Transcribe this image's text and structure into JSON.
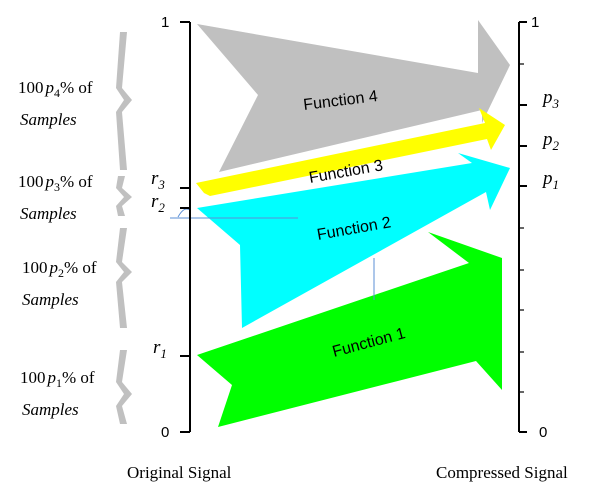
{
  "left_axis": {
    "top_label": "1",
    "bottom_label": "0",
    "caption": "Original Signal"
  },
  "right_axis": {
    "top_label": "1",
    "bottom_label": "0",
    "caption": "Compressed Signal"
  },
  "left_marks": [
    {
      "sym": "r",
      "sub": "3"
    },
    {
      "sym": "r",
      "sub": "2"
    },
    {
      "sym": "r",
      "sub": "1"
    }
  ],
  "right_marks": [
    {
      "sym": "p",
      "sub": "3"
    },
    {
      "sym": "p",
      "sub": "2"
    },
    {
      "sym": "p",
      "sub": "1"
    }
  ],
  "functions": [
    {
      "label": "Function 4",
      "color": "#c0c0c0"
    },
    {
      "label": "Function 3",
      "color": "#ffff00"
    },
    {
      "label": "Function 2",
      "color": "#00ffff"
    },
    {
      "label": "Function 1",
      "color": "#00ff00"
    }
  ],
  "sample_groups": [
    {
      "prefix": "100",
      "sym": "p",
      "sub": "4",
      "suffix": "% of",
      "line2": "Samples"
    },
    {
      "prefix": "100",
      "sym": "p",
      "sub": "3",
      "suffix": "% of",
      "line2": "Samples"
    },
    {
      "prefix": "100",
      "sym": "p",
      "sub": "2",
      "suffix": "% of",
      "line2": "Samples"
    },
    {
      "prefix": "100",
      "sym": "p",
      "sub": "1",
      "suffix": "% of",
      "line2": "Samples"
    }
  ]
}
